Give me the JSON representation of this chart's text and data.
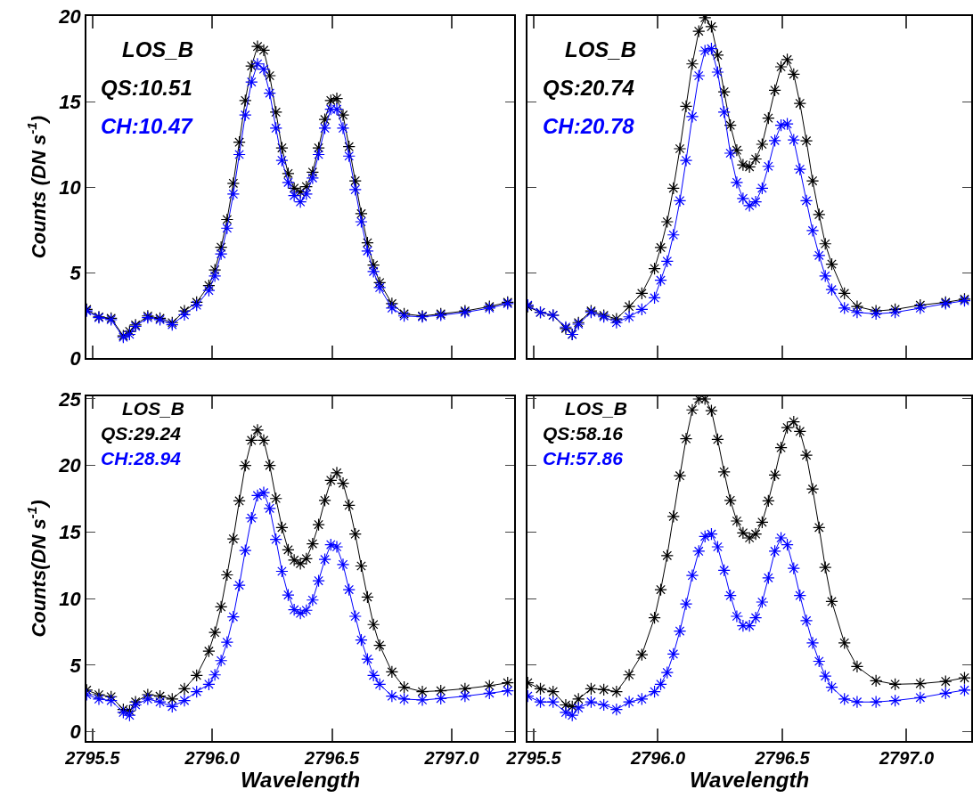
{
  "chart_data": [
    {
      "type": "line",
      "ylabel": "Counts (DN s$^{-1}$)",
      "marker": "cross",
      "line_style": "solid",
      "tick_labels": "y",
      "annotations": [
        "LOS_B",
        "QS:10.51",
        "CH:10.47"
      ],
      "xlim": [
        2795.475,
        2797.26
      ],
      "xticks": [
        {
          "value": 2795.5,
          "label": null
        },
        {
          "value": 2796,
          "label": null
        },
        {
          "value": 2796.5,
          "label": null
        },
        {
          "value": 2797,
          "label": null
        }
      ],
      "ylim": [
        0,
        20
      ],
      "yticks": [
        0,
        5,
        10,
        15,
        20
      ],
      "x": [
        2795.476,
        2795.527,
        2795.578,
        2795.629,
        2795.655,
        2795.68,
        2795.731,
        2795.782,
        2795.833,
        2795.884,
        2795.935,
        2795.986,
        2796.011,
        2796.037,
        2796.062,
        2796.088,
        2796.113,
        2796.138,
        2796.164,
        2796.189,
        2796.215,
        2796.24,
        2796.266,
        2796.291,
        2796.317,
        2796.342,
        2796.368,
        2796.393,
        2796.419,
        2796.444,
        2796.47,
        2796.495,
        2796.52,
        2796.546,
        2796.571,
        2796.597,
        2796.622,
        2796.648,
        2796.673,
        2796.699,
        2796.75,
        2796.801,
        2796.877,
        2796.954,
        2797.055,
        2797.157,
        2797.233
      ],
      "series": [
        {
          "color": "#000000",
          "values": [
            2.84,
            2.41,
            2.32,
            1.3,
            1.56,
            1.93,
            2.46,
            2.32,
            2.07,
            2.75,
            3.26,
            4.24,
            5.15,
            6.48,
            8.1,
            10.22,
            12.62,
            15.06,
            17.08,
            18.22,
            18.0,
            16.51,
            14.38,
            12.29,
            10.79,
            9.93,
            9.71,
            10.02,
            10.87,
            12.29,
            13.95,
            15.06,
            15.18,
            14.21,
            12.36,
            10.36,
            8.44,
            6.74,
            5.44,
            4.41,
            3.18,
            2.58,
            2.46,
            2.58,
            2.75,
            3.01,
            3.26
          ]
        },
        {
          "color": "#0000ff",
          "values": [
            2.75,
            2.36,
            2.24,
            1.21,
            1.38,
            1.85,
            2.36,
            2.24,
            1.95,
            2.53,
            3.09,
            3.95,
            4.8,
            6.09,
            7.59,
            9.59,
            11.9,
            14.21,
            16.14,
            17.2,
            16.89,
            15.49,
            13.44,
            11.56,
            10.27,
            9.5,
            9.13,
            9.59,
            10.53,
            11.9,
            13.44,
            14.55,
            14.55,
            13.44,
            11.81,
            9.85,
            7.97,
            6.26,
            5.06,
            4.12,
            2.92,
            2.46,
            2.41,
            2.5,
            2.67,
            2.92,
            3.18
          ]
        }
      ]
    },
    {
      "type": "line",
      "marker": "cross",
      "line_style": "solid",
      "tick_labels": false,
      "annotations": [
        "LOS_B",
        "QS:20.74",
        "CH:20.78"
      ],
      "xlim": [
        2795.475,
        2797.26
      ],
      "xticks": [
        {
          "value": 2795.5,
          "label": null
        },
        {
          "value": 2796,
          "label": null
        },
        {
          "value": 2796.5,
          "label": null
        },
        {
          "value": 2797,
          "label": null
        }
      ],
      "ylim": [
        0,
        20
      ],
      "yticks": [
        0,
        5,
        10,
        15,
        20
      ],
      "x": [
        2795.476,
        2795.527,
        2795.578,
        2795.629,
        2795.655,
        2795.68,
        2795.731,
        2795.782,
        2795.833,
        2795.884,
        2795.935,
        2795.986,
        2796.011,
        2796.037,
        2796.062,
        2796.088,
        2796.113,
        2796.138,
        2796.164,
        2796.189,
        2796.215,
        2796.24,
        2796.266,
        2796.291,
        2796.317,
        2796.342,
        2796.368,
        2796.393,
        2796.419,
        2796.444,
        2796.47,
        2796.495,
        2796.52,
        2796.546,
        2796.571,
        2796.597,
        2796.622,
        2796.648,
        2796.673,
        2796.699,
        2796.75,
        2796.801,
        2796.877,
        2796.954,
        2797.055,
        2797.157,
        2797.233
      ],
      "series": [
        {
          "color": "#000000",
          "values": [
            3.01,
            2.67,
            2.5,
            1.73,
            1.38,
            2.07,
            2.75,
            2.5,
            2.29,
            3.01,
            3.78,
            5.23,
            6.46,
            7.97,
            9.93,
            12.24,
            14.72,
            17.2,
            19.11,
            19.9,
            19.38,
            17.71,
            15.57,
            13.61,
            12.15,
            11.3,
            11.18,
            11.64,
            12.5,
            14.03,
            15.66,
            17.03,
            17.45,
            16.6,
            14.89,
            12.7,
            10.36,
            8.39,
            6.68,
            5.49,
            3.78,
            3.01,
            2.75,
            2.84,
            3.09,
            3.26,
            3.44
          ]
        },
        {
          "color": "#0000ff",
          "values": [
            3.09,
            2.67,
            2.5,
            1.81,
            1.38,
            1.98,
            2.67,
            2.41,
            2.07,
            2.41,
            2.84,
            3.52,
            4.55,
            5.66,
            7.2,
            9.2,
            11.56,
            14.12,
            16.51,
            17.97,
            18.09,
            16.72,
            14.38,
            11.98,
            10.27,
            9.33,
            8.91,
            9.13,
            9.93,
            11.21,
            12.72,
            13.61,
            13.69,
            12.75,
            11.04,
            9.2,
            7.45,
            6.0,
            4.8,
            4.0,
            2.92,
            2.67,
            2.58,
            2.67,
            2.92,
            3.18,
            3.35
          ]
        }
      ]
    },
    {
      "type": "line",
      "xlabel": "Wavelength",
      "ylabel": "Counts(DN s$^{-1}$)",
      "marker": "cross",
      "line_style": "solid",
      "annotations": [
        "LOS_B",
        "QS:29.24",
        "CH:28.94"
      ],
      "xlim": [
        2795.475,
        2797.26
      ],
      "xticks": [
        {
          "value": 2795.5,
          "label": "2795.5"
        },
        {
          "value": 2796,
          "label": "2796.0"
        },
        {
          "value": 2796.5,
          "label": "2796.5"
        },
        {
          "value": 2797,
          "label": "2797.0"
        }
      ],
      "ylim": [
        -0.7,
        25.2
      ],
      "yticks": [
        0,
        5,
        10,
        15,
        20,
        25
      ],
      "x": [
        2795.476,
        2795.527,
        2795.578,
        2795.629,
        2795.655,
        2795.68,
        2795.731,
        2795.782,
        2795.833,
        2795.884,
        2795.935,
        2795.986,
        2796.011,
        2796.037,
        2796.062,
        2796.088,
        2796.113,
        2796.138,
        2796.164,
        2796.189,
        2796.215,
        2796.24,
        2796.266,
        2796.291,
        2796.317,
        2796.342,
        2796.368,
        2796.393,
        2796.419,
        2796.444,
        2796.47,
        2796.495,
        2796.52,
        2796.546,
        2796.571,
        2796.597,
        2796.622,
        2796.648,
        2796.673,
        2796.699,
        2796.75,
        2796.801,
        2796.877,
        2796.954,
        2797.055,
        2797.157,
        2797.233
      ],
      "series": [
        {
          "color": "#000000",
          "values": [
            3.12,
            2.78,
            2.63,
            1.67,
            1.56,
            2.23,
            2.78,
            2.67,
            2.45,
            3.23,
            4.23,
            6.05,
            7.45,
            9.38,
            11.78,
            14.49,
            17.34,
            20.01,
            21.89,
            22.67,
            21.89,
            20.01,
            17.52,
            15.34,
            13.67,
            12.89,
            12.63,
            13.0,
            14.12,
            15.56,
            17.38,
            18.89,
            19.45,
            18.67,
            17.01,
            14.85,
            12.45,
            10.12,
            8.05,
            6.49,
            4.49,
            3.34,
            3.01,
            3.07,
            3.23,
            3.45,
            3.67
          ]
        },
        {
          "color": "#0000ff",
          "values": [
            2.78,
            2.45,
            2.34,
            1.45,
            1.23,
            2.01,
            2.45,
            2.23,
            1.89,
            2.34,
            3.01,
            3.56,
            4.27,
            5.34,
            6.72,
            8.63,
            11.01,
            13.61,
            16.05,
            17.74,
            17.96,
            16.78,
            14.45,
            12.05,
            10.27,
            9.16,
            8.89,
            9.12,
            9.89,
            11.34,
            12.94,
            14.05,
            13.89,
            12.56,
            10.67,
            8.67,
            6.89,
            5.45,
            4.23,
            3.56,
            2.67,
            2.45,
            2.38,
            2.49,
            2.67,
            2.89,
            3.07
          ]
        }
      ]
    },
    {
      "type": "line",
      "xlabel": "Wavelength",
      "marker": "cross",
      "line_style": "solid",
      "tick_labels": "x",
      "annotations": [
        "LOS_B",
        "QS:58.16",
        "CH:57.86"
      ],
      "xlim": [
        2795.475,
        2797.26
      ],
      "xticks": [
        2795.5,
        {
          "value": 2796,
          "label": "2796.0"
        },
        2796.5,
        {
          "value": 2797,
          "label": "2797.0"
        }
      ],
      "ylim": [
        -0.7,
        25.2
      ],
      "yticks": [
        0,
        5,
        10,
        15,
        20,
        25
      ],
      "x": [
        2795.476,
        2795.527,
        2795.578,
        2795.629,
        2795.655,
        2795.68,
        2795.731,
        2795.782,
        2795.833,
        2795.884,
        2795.935,
        2795.986,
        2796.011,
        2796.037,
        2796.062,
        2796.088,
        2796.113,
        2796.138,
        2796.164,
        2796.189,
        2796.215,
        2796.24,
        2796.266,
        2796.291,
        2796.317,
        2796.342,
        2796.368,
        2796.393,
        2796.419,
        2796.444,
        2796.47,
        2796.495,
        2796.52,
        2796.546,
        2796.571,
        2796.597,
        2796.622,
        2796.648,
        2796.673,
        2796.699,
        2796.75,
        2796.801,
        2796.877,
        2796.954,
        2797.055,
        2797.157,
        2797.233
      ],
      "series": [
        {
          "color": "#000000",
          "values": [
            3.67,
            3.23,
            3.01,
            2.01,
            1.89,
            2.45,
            3.23,
            3.16,
            3.01,
            4.27,
            5.78,
            8.56,
            10.67,
            13.23,
            16.18,
            19.23,
            22.01,
            24.18,
            25.0,
            25.0,
            24.12,
            21.96,
            19.52,
            17.38,
            15.83,
            14.94,
            14.56,
            14.85,
            15.74,
            17.34,
            19.29,
            21.34,
            22.85,
            23.29,
            22.56,
            20.78,
            18.23,
            15.34,
            12.34,
            9.78,
            6.67,
            4.89,
            3.83,
            3.56,
            3.61,
            3.78,
            4.05
          ]
        },
        {
          "color": "#0000ff",
          "values": [
            2.67,
            2.23,
            2.23,
            1.45,
            1.23,
            1.78,
            2.23,
            2.01,
            1.67,
            2.23,
            2.45,
            3.01,
            3.56,
            4.45,
            5.83,
            7.56,
            9.6,
            11.74,
            13.56,
            14.67,
            14.85,
            13.89,
            12.12,
            10.23,
            8.67,
            7.96,
            7.96,
            8.56,
            9.74,
            11.56,
            13.56,
            14.56,
            14.05,
            12.27,
            10.23,
            8.34,
            6.67,
            5.29,
            4.18,
            3.34,
            2.45,
            2.23,
            2.23,
            2.34,
            2.56,
            2.89,
            3.12
          ]
        }
      ]
    }
  ]
}
